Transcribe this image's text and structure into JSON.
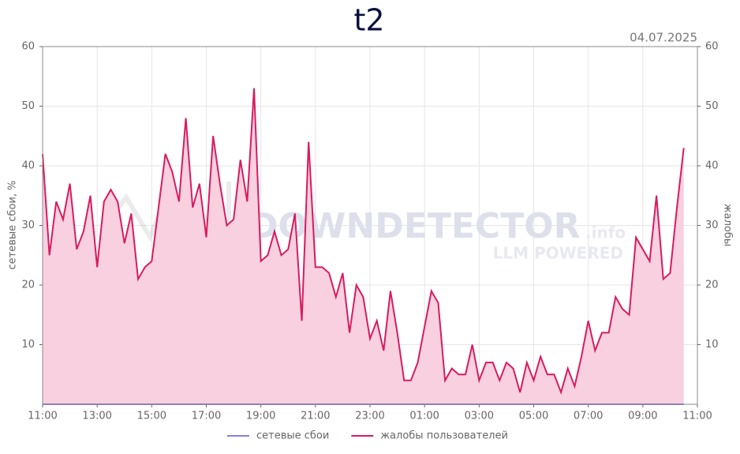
{
  "chart_data": {
    "type": "line",
    "title": "t2",
    "date": "04.07.2025",
    "watermark": "DOWNDETECTOR",
    "watermark_suffix": ".info",
    "watermark_sub": "LLM POWERED",
    "ylabel": "сетевые сбои, %",
    "y2label": "жалобы",
    "xlim": [
      0,
      24
    ],
    "xticks": [
      {
        "value": 0,
        "label": "11:00"
      },
      {
        "value": 2,
        "label": "13:00"
      },
      {
        "value": 4,
        "label": "15:00"
      },
      {
        "value": 6,
        "label": "17:00"
      },
      {
        "value": 8,
        "label": "19:00"
      },
      {
        "value": 10,
        "label": "21:00"
      },
      {
        "value": 12,
        "label": "23:00"
      },
      {
        "value": 14,
        "label": "01:00"
      },
      {
        "value": 16,
        "label": "03:00"
      },
      {
        "value": 18,
        "label": "05:00"
      },
      {
        "value": 20,
        "label": "07:00"
      },
      {
        "value": 22,
        "label": "09:00"
      },
      {
        "value": 24,
        "label": "11:00"
      }
    ],
    "ylim": [
      0,
      60
    ],
    "yticks": [
      10,
      20,
      30,
      40,
      50,
      60
    ],
    "y2lim": [
      0,
      60
    ],
    "y2ticks": [
      10,
      20,
      30,
      40,
      50,
      60
    ],
    "grid": true,
    "x": [
      0,
      0.25,
      0.5,
      0.75,
      1,
      1.25,
      1.5,
      1.75,
      2,
      2.25,
      2.5,
      2.75,
      3,
      3.25,
      3.5,
      3.75,
      4,
      4.25,
      4.5,
      4.75,
      5,
      5.25,
      5.5,
      5.75,
      6,
      6.25,
      6.5,
      6.75,
      7,
      7.25,
      7.5,
      7.75,
      8,
      8.25,
      8.5,
      8.75,
      9,
      9.25,
      9.5,
      9.75,
      10,
      10.25,
      10.5,
      10.75,
      11,
      11.25,
      11.5,
      11.75,
      12,
      12.25,
      12.5,
      12.75,
      13,
      13.25,
      13.5,
      13.75,
      14,
      14.25,
      14.5,
      14.75,
      15,
      15.25,
      15.5,
      15.75,
      16,
      16.25,
      16.5,
      16.75,
      17,
      17.25,
      17.5,
      17.75,
      18,
      18.25,
      18.5,
      18.75,
      19,
      19.25,
      19.5,
      19.75,
      20,
      20.25,
      20.5,
      20.75,
      21,
      21.25,
      21.5,
      21.75,
      22,
      22.25,
      22.5,
      22.75,
      23,
      23.25,
      23.5
    ],
    "series": [
      {
        "name": "сетевые сбои",
        "color": "#8a7fe0",
        "axis": "y",
        "values": [
          0,
          0,
          0,
          0,
          0,
          0,
          0,
          0,
          0,
          0,
          0,
          0,
          0,
          0,
          0,
          0,
          0,
          0,
          0,
          0,
          0,
          0,
          0,
          0,
          0,
          0,
          0,
          0,
          0,
          0,
          0,
          0,
          0,
          0,
          0,
          0,
          0,
          0,
          0,
          0,
          0,
          0,
          0,
          0,
          0,
          0,
          0,
          0,
          0,
          0,
          0,
          0,
          0,
          0,
          0,
          0,
          0,
          0,
          0,
          0,
          0,
          0,
          0,
          0,
          0,
          0,
          0,
          0,
          0,
          0,
          0,
          0,
          0,
          0,
          0,
          0,
          0,
          0,
          0,
          0,
          0,
          0,
          0,
          0,
          0,
          0,
          0,
          0,
          0,
          0,
          0,
          0,
          0,
          0,
          0
        ]
      },
      {
        "name": "жалобы пользователей",
        "color": "#d81b60",
        "fill": "#f8d0e0",
        "axis": "y2",
        "values": [
          42,
          25,
          34,
          31,
          37,
          26,
          29,
          35,
          23,
          34,
          36,
          34,
          27,
          32,
          21,
          23,
          24,
          33,
          42,
          39,
          34,
          48,
          33,
          37,
          28,
          45,
          37,
          30,
          31,
          41,
          34,
          53,
          24,
          25,
          29,
          25,
          26,
          32,
          14,
          44,
          23,
          23,
          22,
          18,
          22,
          12,
          20,
          18,
          11,
          14,
          9,
          19,
          12,
          4,
          4,
          7,
          13,
          19,
          17,
          4,
          6,
          5,
          5,
          10,
          4,
          7,
          7,
          4,
          7,
          6,
          2,
          7,
          4,
          8,
          5,
          5,
          2,
          6,
          3,
          8,
          14,
          9,
          12,
          12,
          18,
          16,
          15,
          28,
          26,
          24,
          35,
          21,
          22,
          33,
          43
        ]
      }
    ]
  }
}
